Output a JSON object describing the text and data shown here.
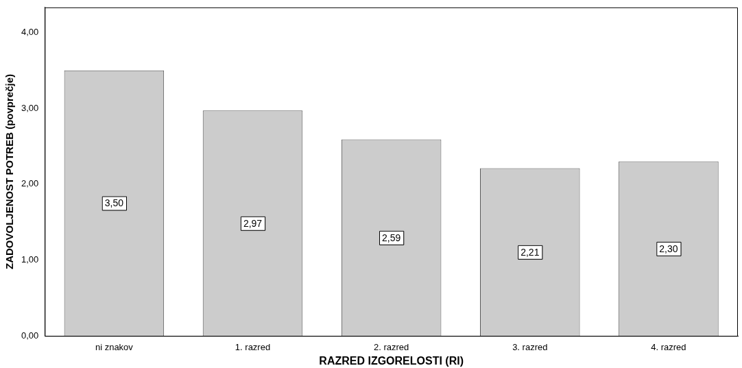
{
  "chart_data": {
    "type": "bar",
    "xlabel": "RAZRED IZGORELOSTI (RI)",
    "ylabel": "ZADOVOLJENOST POTREB (povprečje)",
    "categories": [
      "ni znakov",
      "1. razred",
      "2. razred",
      "3. razred",
      "4. razred"
    ],
    "values": [
      3.5,
      2.97,
      2.59,
      2.21,
      2.3
    ],
    "value_labels": [
      "3,50",
      "2,97",
      "2,59",
      "2,21",
      "2,30"
    ],
    "color": "#cccccc",
    "ylim": [
      0,
      4.33
    ],
    "yticks": [
      {
        "value": 0,
        "label": "0,00"
      },
      {
        "value": 1,
        "label": "1,00"
      },
      {
        "value": 2,
        "label": "2,00"
      },
      {
        "value": 3,
        "label": "3,00"
      },
      {
        "value": 4,
        "label": "4,00"
      }
    ],
    "grid": false,
    "legend": false
  }
}
